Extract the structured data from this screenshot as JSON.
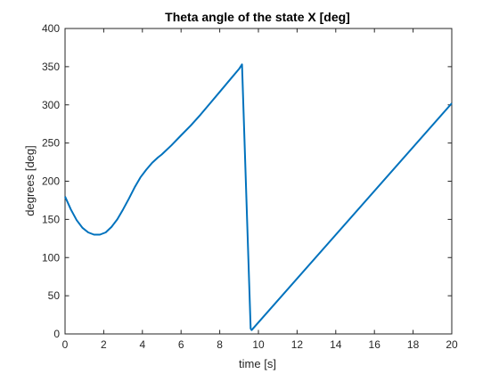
{
  "chart_data": {
    "type": "line",
    "title": "Theta angle of the state X [deg]",
    "xlabel": "time [s]",
    "ylabel": "degrees [deg]",
    "xlim": [
      0,
      20
    ],
    "ylim": [
      0,
      400
    ],
    "xticks": [
      0,
      2,
      4,
      6,
      8,
      10,
      12,
      14,
      16,
      18,
      20
    ],
    "yticks": [
      0,
      50,
      100,
      150,
      200,
      250,
      300,
      350,
      400
    ],
    "grid": false,
    "line_color": "#0072BD",
    "series": [
      {
        "x": [
          0,
          0.3,
          0.6,
          0.9,
          1.2,
          1.5,
          1.8,
          2.1,
          2.4,
          2.7,
          3.0,
          3.3,
          3.6,
          3.9,
          4.2,
          4.5,
          4.8,
          5.0,
          5.5,
          6.0,
          6.5,
          7.0,
          7.5,
          8.0,
          8.5,
          9.0,
          9.15,
          9.6,
          9.65,
          20.0
        ],
        "y": [
          180,
          163,
          149,
          139,
          133,
          130,
          130,
          133,
          140,
          150,
          163,
          177,
          192,
          205,
          215,
          224,
          231,
          235,
          247,
          260,
          273,
          287,
          302,
          317,
          332,
          347,
          353,
          7,
          5,
          302
        ]
      }
    ]
  }
}
